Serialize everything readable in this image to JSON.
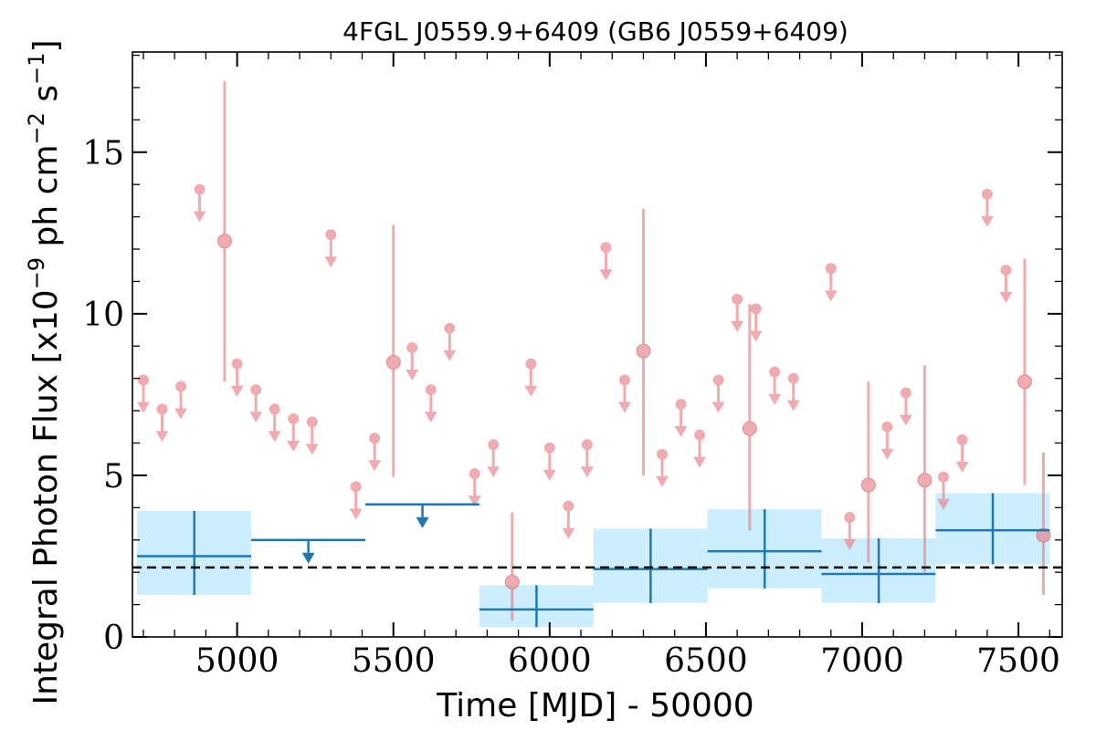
{
  "chart_data": {
    "type": "scatter",
    "title": "4FGL J0559.9+6409 (GB6 J0559+6409)",
    "xlabel": "Time [MJD] - 50000",
    "ylabel": "Integral Photon Flux [x10",
    "ylabel_exp1": "−9",
    "ylabel_mid": " ph cm",
    "ylabel_exp2": "−2",
    "ylabel_mid2": " s",
    "ylabel_exp3": "−1",
    "ylabel_end": "]",
    "xlim": [
      4665,
      7640
    ],
    "ylim": [
      0,
      18.1
    ],
    "xticks": [
      5000,
      5500,
      6000,
      6500,
      7000,
      7500
    ],
    "xtick_labels": [
      "5000",
      "5500",
      "6000",
      "6500",
      "7000",
      "7500"
    ],
    "yticks": [
      0,
      5,
      10,
      15
    ],
    "ytick_labels": [
      "0",
      "5",
      "10",
      "15"
    ],
    "mean_flux": 2.15,
    "colors": {
      "fine": "#e8888f",
      "coarse": "#1f77b4",
      "band": "#cdeefc",
      "mean_line": "#000000"
    },
    "fine_upper_limits": [
      {
        "x": 4700,
        "y": 7.95
      },
      {
        "x": 4760,
        "y": 7.05
      },
      {
        "x": 4820,
        "y": 7.75
      },
      {
        "x": 4880,
        "y": 13.85
      },
      {
        "x": 5000,
        "y": 8.45
      },
      {
        "x": 5060,
        "y": 7.65
      },
      {
        "x": 5120,
        "y": 7.05
      },
      {
        "x": 5180,
        "y": 6.75
      },
      {
        "x": 5240,
        "y": 6.65
      },
      {
        "x": 5300,
        "y": 12.45
      },
      {
        "x": 5380,
        "y": 4.65
      },
      {
        "x": 5440,
        "y": 6.15
      },
      {
        "x": 5560,
        "y": 8.95
      },
      {
        "x": 5620,
        "y": 7.65
      },
      {
        "x": 5680,
        "y": 9.55
      },
      {
        "x": 5760,
        "y": 5.05
      },
      {
        "x": 5820,
        "y": 5.95
      },
      {
        "x": 5940,
        "y": 8.45
      },
      {
        "x": 6000,
        "y": 5.85
      },
      {
        "x": 6060,
        "y": 4.05
      },
      {
        "x": 6120,
        "y": 5.95
      },
      {
        "x": 6180,
        "y": 12.05
      },
      {
        "x": 6240,
        "y": 7.95
      },
      {
        "x": 6360,
        "y": 5.65
      },
      {
        "x": 6420,
        "y": 7.2
      },
      {
        "x": 6480,
        "y": 6.25
      },
      {
        "x": 6540,
        "y": 7.95
      },
      {
        "x": 6600,
        "y": 10.45
      },
      {
        "x": 6660,
        "y": 10.15
      },
      {
        "x": 6720,
        "y": 8.2
      },
      {
        "x": 6780,
        "y": 8.0
      },
      {
        "x": 6900,
        "y": 11.4
      },
      {
        "x": 6960,
        "y": 3.7
      },
      {
        "x": 7080,
        "y": 6.5
      },
      {
        "x": 7140,
        "y": 7.55
      },
      {
        "x": 7260,
        "y": 4.95
      },
      {
        "x": 7320,
        "y": 6.1
      },
      {
        "x": 7400,
        "y": 13.7
      },
      {
        "x": 7460,
        "y": 11.35
      }
    ],
    "fine_detections": [
      {
        "x": 4960,
        "y": 12.25,
        "low": 7.9,
        "high": 17.2
      },
      {
        "x": 5500,
        "y": 8.5,
        "low": 4.95,
        "high": 12.75
      },
      {
        "x": 5880,
        "y": 1.7,
        "low": 0.5,
        "high": 3.85
      },
      {
        "x": 6300,
        "y": 8.85,
        "low": 5.0,
        "high": 13.25
      },
      {
        "x": 6640,
        "y": 6.45,
        "low": 3.3,
        "high": 10.3
      },
      {
        "x": 7020,
        "y": 4.7,
        "low": 2.3,
        "high": 7.9
      },
      {
        "x": 7200,
        "y": 4.85,
        "low": 2.0,
        "high": 8.4
      },
      {
        "x": 7520,
        "y": 7.9,
        "low": 4.7,
        "high": 11.7
      },
      {
        "x": 7580,
        "y": 3.15,
        "low": 1.3,
        "high": 5.7
      }
    ],
    "coarse_upper_limits": [
      {
        "x_start": 5045,
        "x_end": 5410,
        "x": 5228,
        "y": 3.0
      },
      {
        "x_start": 5410,
        "x_end": 5775,
        "x": 5593,
        "y": 4.1
      }
    ],
    "coarse_detections": [
      {
        "x_start": 4680,
        "x_end": 5045,
        "x": 4863,
        "y": 2.5,
        "low": 1.3,
        "high": 3.9
      },
      {
        "x_start": 5775,
        "x_end": 6140,
        "x": 5958,
        "y": 0.85,
        "low": 0.3,
        "high": 1.6
      },
      {
        "x_start": 6140,
        "x_end": 6505,
        "x": 6323,
        "y": 2.1,
        "low": 1.05,
        "high": 3.35
      },
      {
        "x_start": 6505,
        "x_end": 6870,
        "x": 6688,
        "y": 2.65,
        "low": 1.5,
        "high": 3.95
      },
      {
        "x_start": 6870,
        "x_end": 7235,
        "x": 7053,
        "y": 1.95,
        "low": 1.05,
        "high": 3.05
      },
      {
        "x_start": 7235,
        "x_end": 7600,
        "x": 7418,
        "y": 3.3,
        "low": 2.25,
        "high": 4.45
      }
    ]
  }
}
